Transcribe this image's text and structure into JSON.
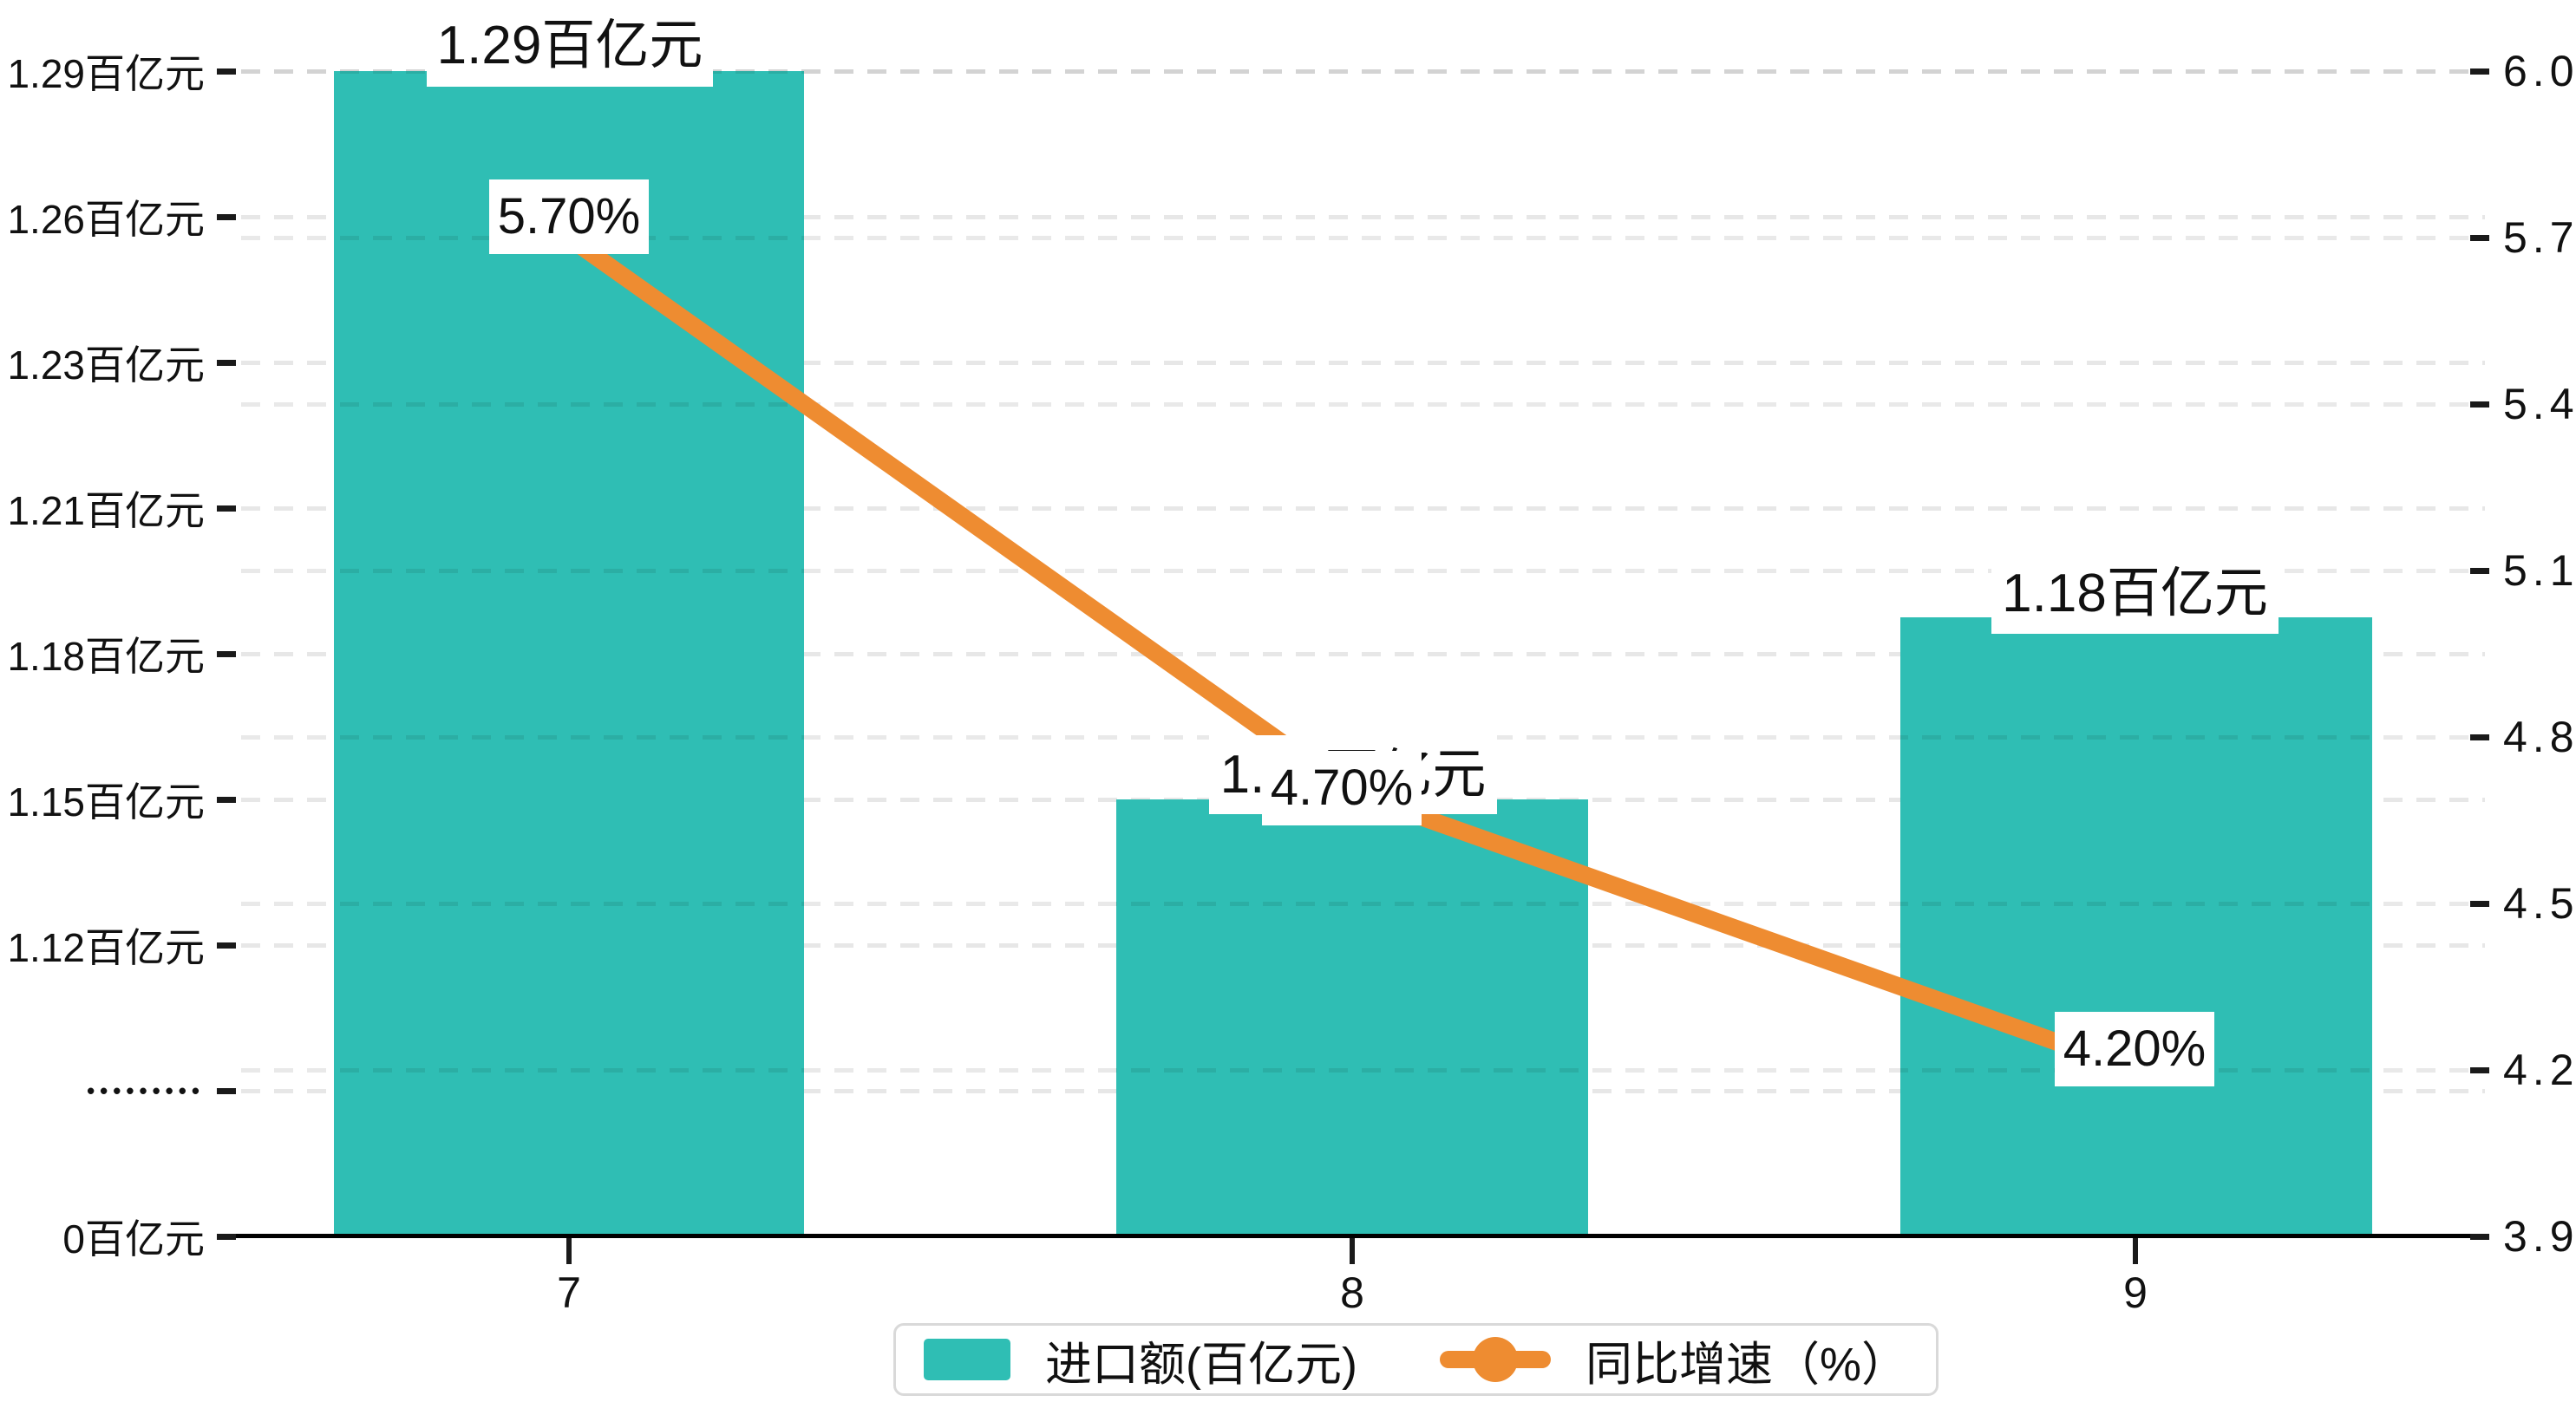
{
  "chart_data": {
    "type": "bar+line",
    "categories": [
      "7",
      "8",
      "9"
    ],
    "series": [
      {
        "name": "进口额(百亿元)",
        "type": "bar",
        "axis": "left",
        "values": [
          1.29,
          1.15,
          1.18
        ],
        "value_labels": [
          "1.29百亿元",
          "1.15百亿元",
          "1.18百亿元"
        ],
        "color": "#2fbeb4"
      },
      {
        "name": "同比增速（%）",
        "type": "line",
        "axis": "right",
        "values": [
          5.7,
          4.7,
          4.2
        ],
        "value_labels": [
          "5.70%",
          "4.70%",
          "4.20%"
        ],
        "color": "#ee8c31"
      }
    ],
    "left_axis": {
      "broken_axis": true,
      "ticks": [
        "1.29百亿元",
        "1.26百亿元",
        "1.23百亿元",
        "1.21百亿元",
        "1.18百亿元",
        "1.15百亿元",
        "1.12百亿元",
        "•••••••••",
        "0百亿元"
      ]
    },
    "right_axis": {
      "range": [
        3.9,
        6.0
      ],
      "ticks": [
        "6.0",
        "5.7",
        "5.4",
        "5.1",
        "4.8",
        "4.5",
        "4.2",
        "3.9"
      ]
    },
    "x_axis": {
      "ticks": [
        "7",
        "8",
        "9"
      ]
    },
    "legend": [
      {
        "label": "进口额(百亿元)",
        "marker": "rect",
        "color": "#2fbeb4"
      },
      {
        "label": "同比增速（%）",
        "marker": "line-dot",
        "color": "#ee8c31"
      }
    ],
    "grid": "dashed",
    "background": "#ffffff"
  }
}
